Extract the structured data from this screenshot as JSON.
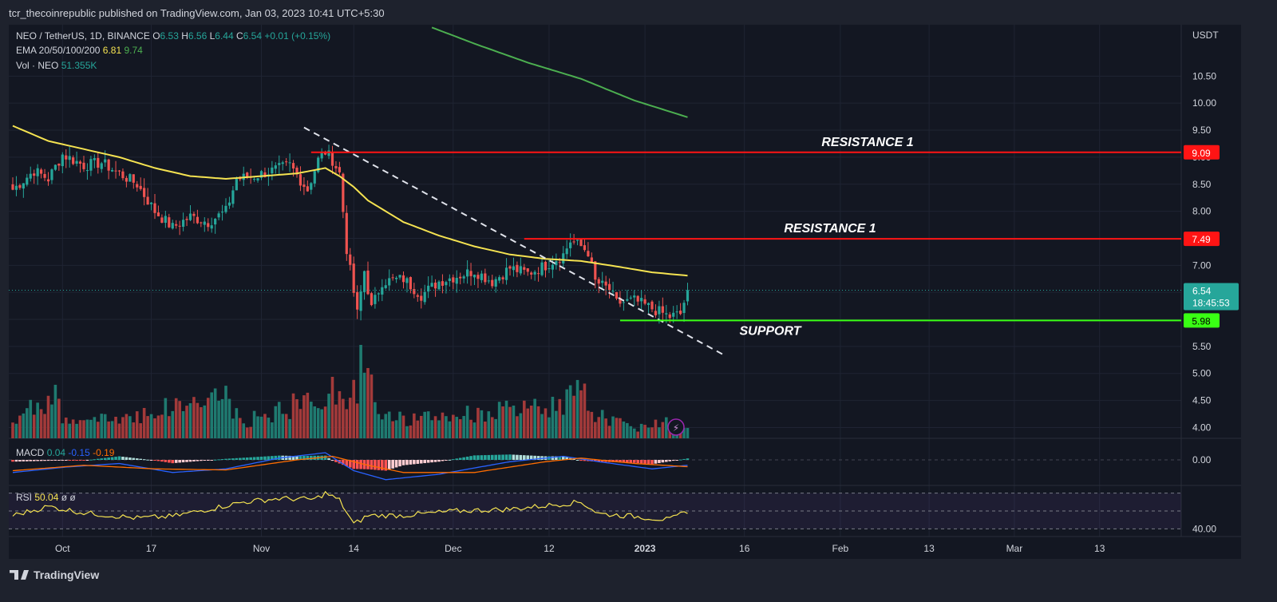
{
  "header": {
    "publisher": "tcr_thecoinrepublic published on TradingView.com, Jan 03, 2023 10:41 UTC+5:30"
  },
  "legend": {
    "symbol": "NEO / TetherUS, 1D, BINANCE",
    "o_label": "O",
    "open": "6.53",
    "h_label": "H",
    "high": "6.56",
    "l_label": "L",
    "low": "6.44",
    "c_label": "C",
    "close": "6.54",
    "change": "+0.01 (+0.15%)",
    "ema_label": "EMA 20/50/100/200",
    "ema_val1": "6.81",
    "ema_val2": "9.74",
    "vol_label": "Vol · NEO",
    "vol_value": "51.355K"
  },
  "macd_legend": {
    "label": "MACD",
    "v1": "0.04",
    "v2": "-0.15",
    "v3": "-0.19"
  },
  "rsi_legend": {
    "label": "RSI",
    "value": "50.04",
    "n1": "ø",
    "n2": "ø"
  },
  "footer": {
    "brand": "TradingView"
  },
  "colors": {
    "up": "#26a69a",
    "down": "#ef5350",
    "ema50": "#f5e351",
    "ema200": "#4caf50",
    "level": "#ff1414",
    "support": "#39ff14",
    "macd": "#2962ff",
    "signal": "#ff6d00",
    "rsi": "#f5e351"
  },
  "chart_data": {
    "type": "candlestick",
    "title": "NEO / TetherUS, 1D, BINANCE",
    "currency_label": "USDT",
    "y_ticks": [
      "4.00",
      "4.50",
      "5.00",
      "5.50",
      "6.00",
      "6.50",
      "7.00",
      "7.50",
      "8.00",
      "8.50",
      "9.00",
      "9.50",
      "10.00",
      "10.50"
    ],
    "ylim": [
      3.8,
      11.45
    ],
    "x_ticks": [
      "Oct",
      "17",
      "Nov",
      "14",
      "Dec",
      "12",
      "2023",
      "16",
      "Feb",
      "13",
      "Mar",
      "13"
    ],
    "price_badges": [
      {
        "label": "9.09",
        "value": 9.09,
        "color": "#ff1414"
      },
      {
        "label": "7.49",
        "value": 7.49,
        "color": "#ff1414"
      },
      {
        "label": "5.98",
        "value": 5.98,
        "color": "#39ff14"
      }
    ],
    "last_price": {
      "value": "6.54",
      "countdown": "18:45:53"
    },
    "annotations": [
      {
        "text": "RESISTANCE 1",
        "level": 9.09
      },
      {
        "text": "RESISTANCE 1",
        "level": 7.49
      },
      {
        "text": "SUPPORT",
        "level": 5.98
      }
    ],
    "trendline": {
      "from_day": 82,
      "from_price": 9.55,
      "to_day": 200,
      "to_price": 5.35
    },
    "ohlc_anchors": [
      [
        0,
        8.4
      ],
      [
        6,
        8.75
      ],
      [
        10,
        8.6
      ],
      [
        14,
        9.05
      ],
      [
        20,
        8.85
      ],
      [
        25,
        8.9
      ],
      [
        30,
        8.7
      ],
      [
        35,
        8.5
      ],
      [
        40,
        8.0
      ],
      [
        45,
        7.7
      ],
      [
        50,
        7.9
      ],
      [
        55,
        7.8
      ],
      [
        60,
        8.0
      ],
      [
        63,
        8.6
      ],
      [
        68,
        8.65
      ],
      [
        73,
        8.75
      ],
      [
        78,
        8.85
      ],
      [
        83,
        8.4
      ],
      [
        86,
        8.95
      ],
      [
        88,
        9.1
      ],
      [
        90,
        8.95
      ],
      [
        92,
        8.7
      ],
      [
        94,
        7.3
      ],
      [
        97,
        6.1
      ],
      [
        99,
        6.9
      ],
      [
        101,
        6.2
      ],
      [
        104,
        6.7
      ],
      [
        110,
        6.75
      ],
      [
        115,
        6.45
      ],
      [
        120,
        6.7
      ],
      [
        125,
        6.8
      ],
      [
        130,
        6.9
      ],
      [
        135,
        6.7
      ],
      [
        140,
        6.95
      ],
      [
        145,
        6.85
      ],
      [
        150,
        7.0
      ],
      [
        155,
        7.2
      ],
      [
        157,
        7.45
      ],
      [
        160,
        7.35
      ],
      [
        162,
        7.25
      ],
      [
        164,
        6.7
      ],
      [
        168,
        6.55
      ],
      [
        170,
        6.3
      ],
      [
        175,
        6.35
      ],
      [
        180,
        6.2
      ],
      [
        185,
        6.05
      ],
      [
        188,
        6.1
      ],
      [
        190,
        6.54
      ]
    ],
    "ema50_anchors": [
      [
        0,
        9.58
      ],
      [
        10,
        9.3
      ],
      [
        20,
        9.15
      ],
      [
        30,
        9.0
      ],
      [
        40,
        8.8
      ],
      [
        50,
        8.65
      ],
      [
        60,
        8.6
      ],
      [
        70,
        8.65
      ],
      [
        80,
        8.7
      ],
      [
        88,
        8.8
      ],
      [
        92,
        8.65
      ],
      [
        96,
        8.45
      ],
      [
        100,
        8.2
      ],
      [
        110,
        7.8
      ],
      [
        120,
        7.55
      ],
      [
        130,
        7.35
      ],
      [
        140,
        7.2
      ],
      [
        150,
        7.12
      ],
      [
        160,
        7.08
      ],
      [
        170,
        6.98
      ],
      [
        180,
        6.87
      ],
      [
        190,
        6.81
      ]
    ],
    "ema200_anchors": [
      [
        118,
        11.4
      ],
      [
        130,
        11.1
      ],
      [
        145,
        10.75
      ],
      [
        160,
        10.45
      ],
      [
        175,
        10.05
      ],
      [
        190,
        9.74
      ]
    ],
    "volume_anchors": [
      [
        0,
        0.35
      ],
      [
        13,
        0.95
      ],
      [
        14,
        0.3
      ],
      [
        30,
        0.4
      ],
      [
        60,
        0.85
      ],
      [
        64,
        0.3
      ],
      [
        92,
        0.95
      ],
      [
        94,
        0.45
      ],
      [
        100,
        1.8
      ],
      [
        101,
        1.0
      ],
      [
        102,
        0.7
      ],
      [
        110,
        0.35
      ],
      [
        130,
        0.5
      ],
      [
        150,
        0.6
      ],
      [
        160,
        0.9
      ],
      [
        164,
        0.5
      ],
      [
        175,
        0.2
      ],
      [
        187,
        0.4
      ],
      [
        190,
        0.2
      ]
    ],
    "macd_line_anchors": [
      [
        0,
        -0.35
      ],
      [
        15,
        -0.2
      ],
      [
        30,
        -0.1
      ],
      [
        45,
        -0.35
      ],
      [
        60,
        -0.25
      ],
      [
        75,
        0.05
      ],
      [
        88,
        0.2
      ],
      [
        96,
        -0.3
      ],
      [
        105,
        -0.55
      ],
      [
        120,
        -0.4
      ],
      [
        140,
        -0.05
      ],
      [
        155,
        0.1
      ],
      [
        165,
        -0.05
      ],
      [
        180,
        -0.25
      ],
      [
        190,
        -0.15
      ]
    ],
    "macd_signal_anchors": [
      [
        0,
        -0.3
      ],
      [
        20,
        -0.15
      ],
      [
        40,
        -0.25
      ],
      [
        60,
        -0.28
      ],
      [
        80,
        0.0
      ],
      [
        90,
        0.1
      ],
      [
        100,
        -0.15
      ],
      [
        110,
        -0.35
      ],
      [
        130,
        -0.35
      ],
      [
        150,
        -0.05
      ],
      [
        160,
        0.05
      ],
      [
        175,
        -0.1
      ],
      [
        190,
        -0.19
      ]
    ],
    "rsi_anchors": [
      [
        0,
        45
      ],
      [
        10,
        55
      ],
      [
        20,
        48
      ],
      [
        35,
        42
      ],
      [
        45,
        44
      ],
      [
        55,
        52
      ],
      [
        65,
        60
      ],
      [
        75,
        64
      ],
      [
        85,
        63
      ],
      [
        88,
        70
      ],
      [
        92,
        62
      ],
      [
        96,
        35
      ],
      [
        100,
        45
      ],
      [
        110,
        45
      ],
      [
        125,
        50
      ],
      [
        140,
        52
      ],
      [
        155,
        58
      ],
      [
        160,
        60
      ],
      [
        165,
        47
      ],
      [
        175,
        44
      ],
      [
        185,
        40
      ],
      [
        190,
        50
      ]
    ],
    "rsi_ylim": [
      25,
      75
    ],
    "rsi_tick": "40.00",
    "macd_tick": "0.00"
  }
}
